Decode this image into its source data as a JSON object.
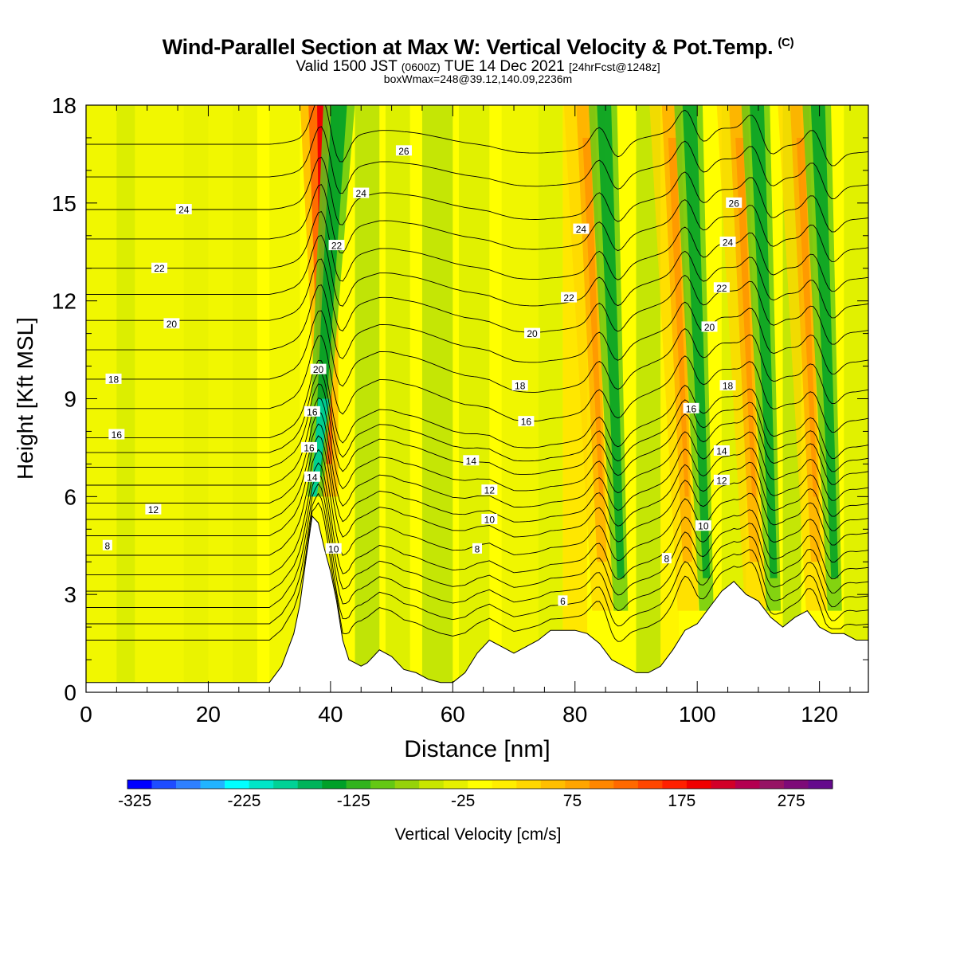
{
  "title": {
    "main": "Wind-Parallel Section at Max W: Vertical Velocity & Pot.Temp.",
    "copyright": "(C)",
    "valid_prefix": "Valid 1500 JST",
    "valid_utc": "(0600Z)",
    "valid_date": "TUE 14 Dec 2021",
    "forecast": "[24hrFcst@1248z]",
    "boxwmax": "boxWmax=248@39.12,140.09,2236m"
  },
  "chart_data": {
    "type": "heatmap",
    "xlabel": "Distance [nm]",
    "ylabel": "Height [Kft MSL]",
    "xlim": [
      0,
      128
    ],
    "ylim": [
      0,
      18
    ],
    "x_ticks": [
      0,
      20,
      40,
      60,
      80,
      100,
      120
    ],
    "y_ticks": [
      0,
      3,
      6,
      9,
      12,
      15,
      18
    ],
    "colorbar": {
      "label": "Vertical Velocity [cm/s]",
      "tick_labels": [
        "-325",
        "-225",
        "-125",
        "-25",
        "75",
        "175",
        "275"
      ],
      "colors": [
        "#0000ff",
        "#1e4cff",
        "#2f80ff",
        "#21b4ff",
        "#00ffff",
        "#00e6c8",
        "#00d296",
        "#00b45a",
        "#00a028",
        "#32b41e",
        "#64c814",
        "#96d20a",
        "#c8e600",
        "#e6f000",
        "#ffff00",
        "#ffee00",
        "#ffd700",
        "#ffbe00",
        "#ffa500",
        "#ff8700",
        "#ff6900",
        "#ff4600",
        "#ff2000",
        "#f00000",
        "#d20028",
        "#b40050",
        "#961464",
        "#7d0a78",
        "#640a8c"
      ]
    },
    "updrafts": [
      {
        "x_nm": 38.5,
        "peak_cm_s": 248
      },
      {
        "x_nm": 84
      },
      {
        "x_nm": 98
      },
      {
        "x_nm": 109
      },
      {
        "x_nm": 119
      }
    ],
    "downdrafts": [
      {
        "x_nm": 41.5
      },
      {
        "x_nm": 87
      },
      {
        "x_nm": 101
      },
      {
        "x_nm": 112
      },
      {
        "x_nm": 122
      }
    ],
    "terrain": {
      "x": [
        0,
        4,
        10,
        18,
        26,
        30,
        32,
        34,
        35,
        36,
        37,
        38,
        39,
        40,
        41,
        42,
        43,
        44,
        45,
        46,
        47,
        48,
        50,
        52,
        54,
        56,
        58,
        60,
        62,
        64,
        66,
        68,
        70,
        72,
        74,
        76,
        78,
        80,
        82,
        84,
        86,
        88,
        90,
        92,
        94,
        96,
        98,
        100,
        102,
        104,
        106,
        108,
        110,
        112,
        114,
        116,
        118,
        120,
        122,
        124,
        126,
        128
      ],
      "y": [
        0.3,
        0.3,
        0.3,
        0.3,
        0.3,
        0.3,
        0.8,
        1.8,
        2.7,
        4.1,
        5.4,
        5.2,
        4.4,
        3.7,
        2.8,
        1.6,
        1.0,
        0.9,
        0.8,
        0.9,
        1.1,
        1.3,
        1.1,
        0.7,
        0.6,
        0.4,
        0.3,
        0.3,
        0.6,
        1.2,
        1.6,
        1.4,
        1.2,
        1.4,
        1.6,
        1.9,
        1.9,
        1.9,
        1.8,
        1.5,
        1.0,
        0.8,
        0.6,
        0.6,
        0.8,
        1.3,
        1.9,
        2.1,
        2.6,
        3.1,
        3.4,
        3.0,
        2.8,
        2.3,
        2.0,
        2.3,
        2.5,
        2.0,
        1.8,
        1.8,
        1.6,
        1.6
      ]
    },
    "isentropes": {
      "quantity": "Potential Temperature (C)",
      "base_heights_kft": {
        "4": 1.6,
        "6": 2.6,
        "8": 3.6,
        "10": 4.8,
        "12": 5.8,
        "14": 6.9,
        "16": 7.8,
        "18": 9.6,
        "20": 11.4,
        "22": 13.0,
        "24": 14.8,
        "26": 16.8
      },
      "labels": [
        {
          "text": "8",
          "x": 3.5,
          "y": 4.5
        },
        {
          "text": "12",
          "x": 11,
          "y": 5.6
        },
        {
          "text": "16",
          "x": 5,
          "y": 7.9
        },
        {
          "text": "18",
          "x": 4.5,
          "y": 9.6
        },
        {
          "text": "20",
          "x": 14,
          "y": 11.3
        },
        {
          "text": "22",
          "x": 12,
          "y": 13.0
        },
        {
          "text": "24",
          "x": 16,
          "y": 14.8
        },
        {
          "text": "14",
          "x": 37,
          "y": 6.6
        },
        {
          "text": "16",
          "x": 36.5,
          "y": 7.5
        },
        {
          "text": "16",
          "x": 37,
          "y": 8.6
        },
        {
          "text": "20",
          "x": 38,
          "y": 9.9
        },
        {
          "text": "22",
          "x": 41,
          "y": 13.7
        },
        {
          "text": "24",
          "x": 45,
          "y": 15.3
        },
        {
          "text": "26",
          "x": 52,
          "y": 16.6
        },
        {
          "text": "10",
          "x": 40.5,
          "y": 4.4
        },
        {
          "text": "14",
          "x": 63,
          "y": 7.1
        },
        {
          "text": "12",
          "x": 66,
          "y": 6.2
        },
        {
          "text": "10",
          "x": 66,
          "y": 5.3
        },
        {
          "text": "8",
          "x": 64,
          "y": 4.4
        },
        {
          "text": "16",
          "x": 72,
          "y": 8.3
        },
        {
          "text": "18",
          "x": 71,
          "y": 9.4
        },
        {
          "text": "20",
          "x": 73,
          "y": 11.0
        },
        {
          "text": "22",
          "x": 79,
          "y": 12.1
        },
        {
          "text": "24",
          "x": 81,
          "y": 14.2
        },
        {
          "text": "6",
          "x": 78,
          "y": 2.8
        },
        {
          "text": "8",
          "x": 95,
          "y": 4.1
        },
        {
          "text": "10",
          "x": 101,
          "y": 5.1
        },
        {
          "text": "12",
          "x": 104,
          "y": 6.5
        },
        {
          "text": "14",
          "x": 104,
          "y": 7.4
        },
        {
          "text": "16",
          "x": 99,
          "y": 8.7
        },
        {
          "text": "18",
          "x": 105,
          "y": 9.4
        },
        {
          "text": "20",
          "x": 102,
          "y": 11.2
        },
        {
          "text": "22",
          "x": 104,
          "y": 12.4
        },
        {
          "text": "24",
          "x": 105,
          "y": 13.8
        },
        {
          "text": "26",
          "x": 106,
          "y": 15.0
        }
      ]
    }
  }
}
